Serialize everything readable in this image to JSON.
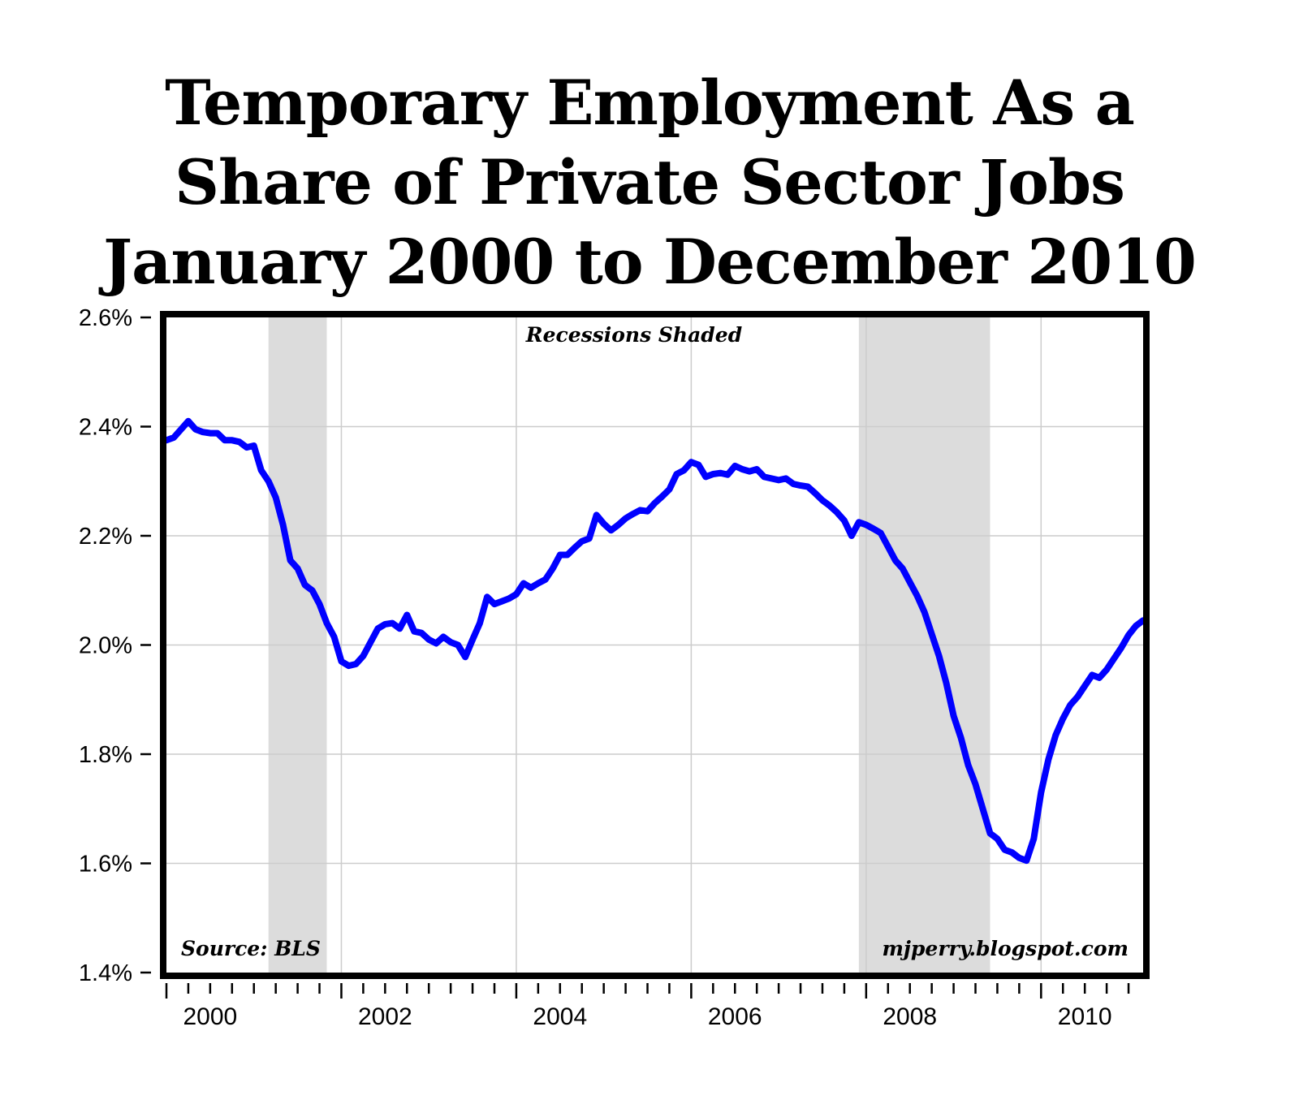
{
  "title_lines": [
    "Temporary Employment As a",
    "Share of Private Sector Jobs",
    "January 2000 to December 2010"
  ],
  "chart_data": {
    "type": "line",
    "title": "Temporary Employment As a Share of Private Sector Jobs January 2000 to December 2010",
    "xlabel": "",
    "ylabel": "",
    "ylim": [
      1.4,
      2.6
    ],
    "xlim": [
      "2000-01",
      "2010-12"
    ],
    "y_ticks": [
      "1.4%",
      "1.6%",
      "1.8%",
      "2.0%",
      "2.2%",
      "2.4%",
      "2.6%"
    ],
    "x_ticks": [
      "2000",
      "2002",
      "2004",
      "2006",
      "2008",
      "2010"
    ],
    "grid": true,
    "line_color": "#0000ff",
    "recession_color": "#dcdcdc",
    "recessions": [
      {
        "start": "2001-03",
        "end": "2001-11"
      },
      {
        "start": "2007-12",
        "end": "2009-06"
      }
    ],
    "annotations": {
      "center_top": "Recessions Shaded",
      "bottom_left": "Source: BLS",
      "bottom_right": "mjperry.blogspot.com"
    },
    "series": [
      {
        "values": [
          [
            "2000-01",
            2.375
          ],
          [
            "2000-02",
            2.38
          ],
          [
            "2000-03",
            2.395
          ],
          [
            "2000-04",
            2.41
          ],
          [
            "2000-05",
            2.395
          ],
          [
            "2000-06",
            2.39
          ],
          [
            "2000-07",
            2.388
          ],
          [
            "2000-08",
            2.388
          ],
          [
            "2000-09",
            2.375
          ],
          [
            "2000-10",
            2.375
          ],
          [
            "2000-11",
            2.372
          ],
          [
            "2000-12",
            2.362
          ],
          [
            "2001-01",
            2.365
          ],
          [
            "2001-02",
            2.32
          ],
          [
            "2001-03",
            2.3
          ],
          [
            "2001-04",
            2.27
          ],
          [
            "2001-05",
            2.22
          ],
          [
            "2001-06",
            2.155
          ],
          [
            "2001-07",
            2.14
          ],
          [
            "2001-08",
            2.11
          ],
          [
            "2001-09",
            2.1
          ],
          [
            "2001-10",
            2.075
          ],
          [
            "2001-11",
            2.04
          ],
          [
            "2001-12",
            2.015
          ],
          [
            "2002-01",
            1.97
          ],
          [
            "2002-02",
            1.962
          ],
          [
            "2002-03",
            1.965
          ],
          [
            "2002-04",
            1.98
          ],
          [
            "2002-05",
            2.005
          ],
          [
            "2002-06",
            2.03
          ],
          [
            "2002-07",
            2.038
          ],
          [
            "2002-08",
            2.04
          ],
          [
            "2002-09",
            2.03
          ],
          [
            "2002-10",
            2.055
          ],
          [
            "2002-11",
            2.025
          ],
          [
            "2002-12",
            2.022
          ],
          [
            "2003-01",
            2.01
          ],
          [
            "2003-02",
            2.003
          ],
          [
            "2003-03",
            2.015
          ],
          [
            "2003-04",
            2.005
          ],
          [
            "2003-05",
            2.0
          ],
          [
            "2003-06",
            1.978
          ],
          [
            "2003-07",
            2.01
          ],
          [
            "2003-08",
            2.04
          ],
          [
            "2003-09",
            2.088
          ],
          [
            "2003-10",
            2.075
          ],
          [
            "2003-11",
            2.08
          ],
          [
            "2003-12",
            2.085
          ],
          [
            "2004-01",
            2.093
          ],
          [
            "2004-02",
            2.113
          ],
          [
            "2004-03",
            2.105
          ],
          [
            "2004-04",
            2.113
          ],
          [
            "2004-05",
            2.12
          ],
          [
            "2004-06",
            2.14
          ],
          [
            "2004-07",
            2.165
          ],
          [
            "2004-08",
            2.165
          ],
          [
            "2004-09",
            2.178
          ],
          [
            "2004-10",
            2.19
          ],
          [
            "2004-11",
            2.195
          ],
          [
            "2004-12",
            2.238
          ],
          [
            "2005-01",
            2.222
          ],
          [
            "2005-02",
            2.21
          ],
          [
            "2005-03",
            2.22
          ],
          [
            "2005-04",
            2.232
          ],
          [
            "2005-05",
            2.24
          ],
          [
            "2005-06",
            2.247
          ],
          [
            "2005-07",
            2.245
          ],
          [
            "2005-08",
            2.26
          ],
          [
            "2005-09",
            2.272
          ],
          [
            "2005-10",
            2.285
          ],
          [
            "2005-11",
            2.313
          ],
          [
            "2005-12",
            2.32
          ],
          [
            "2006-01",
            2.335
          ],
          [
            "2006-02",
            2.33
          ],
          [
            "2006-03",
            2.308
          ],
          [
            "2006-04",
            2.313
          ],
          [
            "2006-05",
            2.315
          ],
          [
            "2006-06",
            2.312
          ],
          [
            "2006-07",
            2.328
          ],
          [
            "2006-08",
            2.322
          ],
          [
            "2006-09",
            2.318
          ],
          [
            "2006-10",
            2.322
          ],
          [
            "2006-11",
            2.308
          ],
          [
            "2006-12",
            2.305
          ],
          [
            "2007-01",
            2.302
          ],
          [
            "2007-02",
            2.305
          ],
          [
            "2007-03",
            2.295
          ],
          [
            "2007-04",
            2.292
          ],
          [
            "2007-05",
            2.29
          ],
          [
            "2007-06",
            2.278
          ],
          [
            "2007-07",
            2.265
          ],
          [
            "2007-08",
            2.255
          ],
          [
            "2007-09",
            2.243
          ],
          [
            "2007-10",
            2.228
          ],
          [
            "2007-11",
            2.2
          ],
          [
            "2007-12",
            2.225
          ],
          [
            "2008-01",
            2.22
          ],
          [
            "2008-02",
            2.213
          ],
          [
            "2008-03",
            2.205
          ],
          [
            "2008-04",
            2.18
          ],
          [
            "2008-05",
            2.155
          ],
          [
            "2008-06",
            2.14
          ],
          [
            "2008-07",
            2.115
          ],
          [
            "2008-08",
            2.09
          ],
          [
            "2008-09",
            2.06
          ],
          [
            "2008-10",
            2.02
          ],
          [
            "2008-11",
            1.98
          ],
          [
            "2008-12",
            1.93
          ],
          [
            "2009-01",
            1.87
          ],
          [
            "2009-02",
            1.83
          ],
          [
            "2009-03",
            1.78
          ],
          [
            "2009-04",
            1.745
          ],
          [
            "2009-05",
            1.7
          ],
          [
            "2009-06",
            1.655
          ],
          [
            "2009-07",
            1.645
          ],
          [
            "2009-08",
            1.625
          ],
          [
            "2009-09",
            1.62
          ],
          [
            "2009-10",
            1.61
          ],
          [
            "2009-11",
            1.605
          ],
          [
            "2009-12",
            1.645
          ],
          [
            "2010-01",
            1.73
          ],
          [
            "2010-02",
            1.79
          ],
          [
            "2010-03",
            1.835
          ],
          [
            "2010-04",
            1.865
          ],
          [
            "2010-05",
            1.89
          ],
          [
            "2010-06",
            1.905
          ],
          [
            "2010-07",
            1.925
          ],
          [
            "2010-08",
            1.945
          ],
          [
            "2010-09",
            1.94
          ],
          [
            "2010-10",
            1.955
          ],
          [
            "2010-11",
            1.975
          ],
          [
            "2010-12",
            1.995
          ],
          [
            "2011-01",
            2.018
          ],
          [
            "2011-02",
            2.035
          ],
          [
            "2011-03",
            2.045
          ]
        ]
      }
    ]
  }
}
